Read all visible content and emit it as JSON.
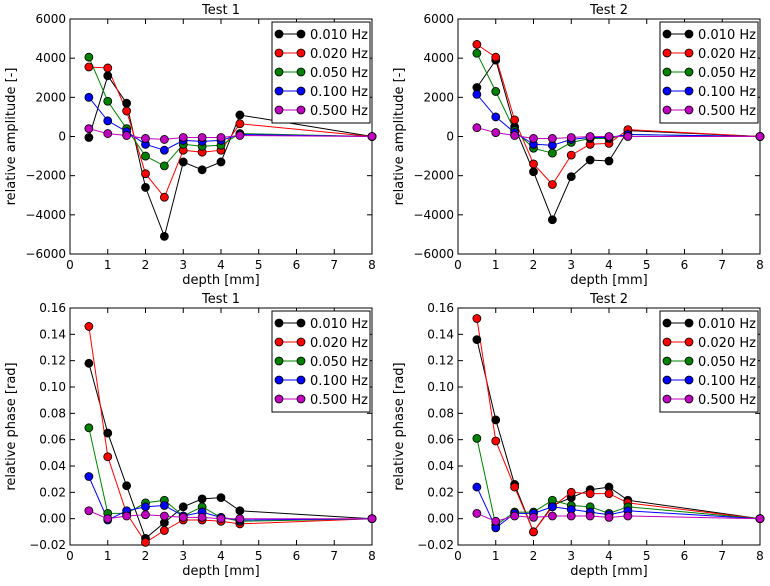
{
  "chart_data": [
    {
      "type": "line",
      "title": "Test 1",
      "xlabel": "depth [mm]",
      "ylabel": "relative amplitude [-]",
      "xlim": [
        0,
        8
      ],
      "ylim": [
        -6000,
        6000
      ],
      "xticks": [
        "0",
        "1",
        "2",
        "3",
        "4",
        "5",
        "6",
        "7",
        "8"
      ],
      "yticks": [
        "−6000",
        "−4000",
        "−2000",
        "0",
        "2000",
        "4000",
        "6000"
      ],
      "ytick_values": [
        -6000,
        -4000,
        -2000,
        0,
        2000,
        4000,
        6000
      ],
      "grid": false,
      "legend_position": "top-right",
      "x": [
        0.5,
        1.0,
        1.5,
        2.0,
        2.5,
        3.0,
        3.5,
        4.0,
        4.5,
        8.0
      ],
      "series": [
        {
          "name": "0.010 Hz",
          "color": "#000000",
          "values": [
            -50,
            3100,
            1700,
            -2600,
            -5100,
            -1300,
            -1700,
            -1300,
            1100,
            0
          ]
        },
        {
          "name": "0.020 Hz",
          "color": "#ff0000",
          "values": [
            3550,
            3500,
            1300,
            -1900,
            -3100,
            -700,
            -800,
            -700,
            650,
            0
          ]
        },
        {
          "name": "0.050 Hz",
          "color": "#008000",
          "values": [
            4050,
            1800,
            400,
            -1000,
            -1500,
            -400,
            -500,
            -450,
            150,
            0
          ]
        },
        {
          "name": "0.100 Hz",
          "color": "#0000ff",
          "values": [
            2000,
            800,
            250,
            -400,
            -700,
            -200,
            -250,
            -200,
            100,
            0
          ]
        },
        {
          "name": "0.500 Hz",
          "color": "#bf00bf",
          "values": [
            400,
            150,
            50,
            -100,
            -150,
            -50,
            -50,
            -50,
            50,
            0
          ]
        }
      ]
    },
    {
      "type": "line",
      "title": "Test 2",
      "xlabel": "depth [mm]",
      "ylabel": "relative amplitude [-]",
      "xlim": [
        0,
        8
      ],
      "ylim": [
        -6000,
        6000
      ],
      "xticks": [
        "0",
        "1",
        "2",
        "3",
        "4",
        "5",
        "6",
        "7",
        "8"
      ],
      "yticks": [
        "−6000",
        "−4000",
        "−2000",
        "0",
        "2000",
        "4000",
        "6000"
      ],
      "ytick_values": [
        -6000,
        -4000,
        -2000,
        0,
        2000,
        4000,
        6000
      ],
      "grid": false,
      "legend_position": "top-right",
      "x": [
        0.5,
        1.0,
        1.5,
        2.0,
        2.5,
        3.0,
        3.5,
        4.0,
        4.5,
        8.0
      ],
      "series": [
        {
          "name": "0.010 Hz",
          "color": "#000000",
          "values": [
            2500,
            3900,
            500,
            -1800,
            -4250,
            -2050,
            -1200,
            -1250,
            300,
            0
          ]
        },
        {
          "name": "0.020 Hz",
          "color": "#ff0000",
          "values": [
            4700,
            4050,
            850,
            -1400,
            -2450,
            -950,
            -400,
            -350,
            350,
            0
          ]
        },
        {
          "name": "0.050 Hz",
          "color": "#008000",
          "values": [
            4250,
            2300,
            300,
            -600,
            -850,
            -300,
            -100,
            -100,
            100,
            0
          ]
        },
        {
          "name": "0.100 Hz",
          "color": "#0000ff",
          "values": [
            2150,
            1000,
            200,
            -400,
            -450,
            -150,
            -50,
            -50,
            100,
            0
          ]
        },
        {
          "name": "0.500 Hz",
          "color": "#bf00bf",
          "values": [
            450,
            200,
            50,
            -100,
            -100,
            -50,
            0,
            0,
            0,
            0
          ]
        }
      ]
    },
    {
      "type": "line",
      "title": "Test 1",
      "xlabel": "depth [mm]",
      "ylabel": "relative phase [rad]",
      "xlim": [
        0,
        8
      ],
      "ylim": [
        -0.02,
        0.16
      ],
      "xticks": [
        "0",
        "1",
        "2",
        "3",
        "4",
        "5",
        "6",
        "7",
        "8"
      ],
      "yticks": [
        "−0.02",
        "0.00",
        "0.02",
        "0.04",
        "0.06",
        "0.08",
        "0.10",
        "0.12",
        "0.14",
        "0.16"
      ],
      "ytick_values": [
        -0.02,
        0.0,
        0.02,
        0.04,
        0.06,
        0.08,
        0.1,
        0.12,
        0.14,
        0.16
      ],
      "grid": false,
      "legend_position": "top-right",
      "x": [
        0.5,
        1.0,
        1.5,
        2.0,
        2.5,
        3.0,
        3.5,
        4.0,
        4.5,
        8.0
      ],
      "series": [
        {
          "name": "0.010 Hz",
          "color": "#000000",
          "values": [
            0.118,
            0.065,
            0.025,
            -0.015,
            -0.003,
            0.009,
            0.015,
            0.016,
            0.006,
            0.0
          ]
        },
        {
          "name": "0.020 Hz",
          "color": "#ff0000",
          "values": [
            0.146,
            0.047,
            0.004,
            -0.018,
            -0.009,
            -0.001,
            -0.001,
            -0.002,
            -0.004,
            0.0
          ]
        },
        {
          "name": "0.050 Hz",
          "color": "#008000",
          "values": [
            0.069,
            0.004,
            0.004,
            0.012,
            0.014,
            0.002,
            0.009,
            0.001,
            -0.002,
            0.0
          ]
        },
        {
          "name": "0.100 Hz",
          "color": "#0000ff",
          "values": [
            0.032,
            -0.001,
            0.006,
            0.009,
            0.01,
            0.002,
            0.005,
            0.001,
            -0.001,
            0.0
          ]
        },
        {
          "name": "0.500 Hz",
          "color": "#bf00bf",
          "values": [
            0.006,
            0.0,
            0.002,
            0.003,
            0.002,
            0.001,
            0.001,
            0.0,
            0.0,
            0.0
          ]
        }
      ]
    },
    {
      "type": "line",
      "title": "Test 2",
      "xlabel": "depth [mm]",
      "ylabel": "relative phase [rad]",
      "xlim": [
        0,
        8
      ],
      "ylim": [
        -0.02,
        0.16
      ],
      "xticks": [
        "0",
        "1",
        "2",
        "3",
        "4",
        "5",
        "6",
        "7",
        "8"
      ],
      "yticks": [
        "−0.02",
        "0.00",
        "0.02",
        "0.04",
        "0.06",
        "0.08",
        "0.10",
        "0.12",
        "0.14",
        "0.16"
      ],
      "ytick_values": [
        -0.02,
        0.0,
        0.02,
        0.04,
        0.06,
        0.08,
        0.1,
        0.12,
        0.14,
        0.16
      ],
      "grid": false,
      "legend_position": "top-right",
      "x": [
        0.5,
        1.0,
        1.5,
        2.0,
        2.5,
        3.0,
        3.5,
        4.0,
        4.5,
        8.0
      ],
      "series": [
        {
          "name": "0.010 Hz",
          "color": "#000000",
          "values": [
            0.136,
            0.075,
            0.026,
            -0.01,
            0.01,
            0.016,
            0.022,
            0.024,
            0.014,
            0.0
          ]
        },
        {
          "name": "0.020 Hz",
          "color": "#ff0000",
          "values": [
            0.152,
            0.059,
            0.024,
            -0.01,
            0.009,
            0.02,
            0.019,
            0.019,
            0.012,
            0.0
          ]
        },
        {
          "name": "0.050 Hz",
          "color": "#008000",
          "values": [
            0.061,
            -0.005,
            0.005,
            0.005,
            0.014,
            0.01,
            0.009,
            0.004,
            0.009,
            0.0
          ]
        },
        {
          "name": "0.100 Hz",
          "color": "#0000ff",
          "values": [
            0.024,
            -0.007,
            0.004,
            0.004,
            0.009,
            0.007,
            0.005,
            0.003,
            0.006,
            0.0
          ]
        },
        {
          "name": "0.500 Hz",
          "color": "#bf00bf",
          "values": [
            0.004,
            -0.002,
            0.002,
            0.001,
            0.002,
            0.002,
            0.002,
            0.001,
            0.002,
            0.0
          ]
        }
      ]
    }
  ]
}
